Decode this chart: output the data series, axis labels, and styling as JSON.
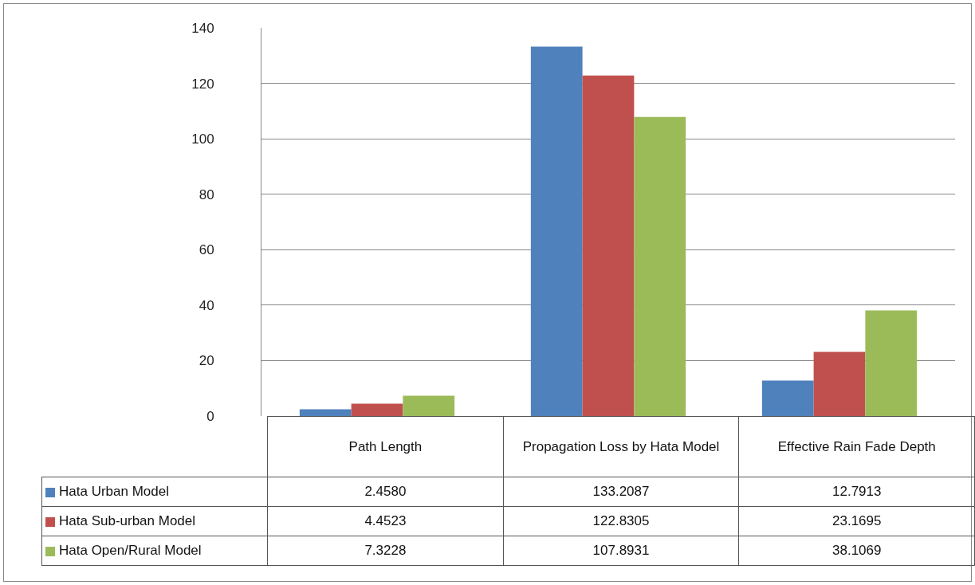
{
  "chart_data": {
    "type": "bar",
    "categories": [
      "Path Length",
      "Propagation Loss  by Hata Model",
      "Effective  Rain Fade Depth"
    ],
    "series": [
      {
        "name": "Hata Urban Model",
        "color": "#4f81bd",
        "values": [
          2.458,
          133.2087,
          12.7913
        ],
        "value_labels": [
          "2.4580",
          "133.2087",
          "12.7913"
        ]
      },
      {
        "name": "Hata Sub-urban Model",
        "color": "#c0504d",
        "values": [
          4.4523,
          122.8305,
          23.1695
        ]
      },
      {
        "name": "Hata Open/Rural Model",
        "color": "#9bbb59",
        "values": [
          7.3228,
          107.8931,
          38.1069
        ]
      }
    ],
    "ylim": [
      0,
      140
    ],
    "yticks": [
      0,
      20,
      40,
      60,
      80,
      100,
      120,
      140
    ],
    "grid": "y",
    "legend": "bottom left",
    "tick_labels": "y",
    "data_labels": true
  }
}
